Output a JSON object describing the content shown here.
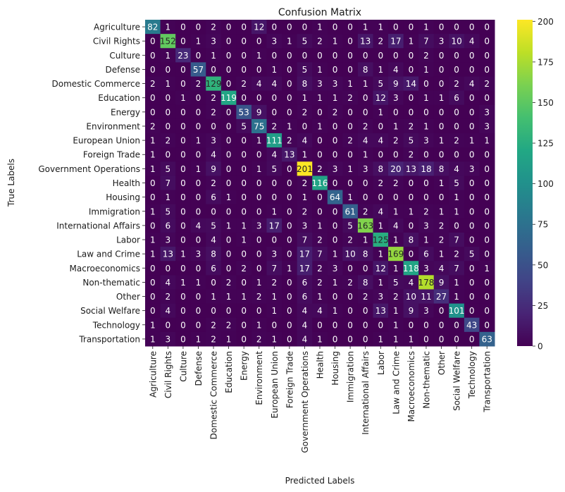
{
  "chart_data": {
    "type": "heatmap",
    "title": "Confusion Matrix",
    "xlabel": "Predicted Labels",
    "ylabel": "True Labels",
    "colormap": "viridis",
    "colorbar": {
      "min": 0,
      "max": 201,
      "ticks": [
        0,
        25,
        50,
        75,
        100,
        125,
        150,
        175,
        200
      ]
    },
    "labels": [
      "Agriculture",
      "Civil Rights",
      "Culture",
      "Defense",
      "Domestic Commerce",
      "Education",
      "Energy",
      "Environment",
      "European Union",
      "Foreign Trade",
      "Government Operations",
      "Health",
      "Housing",
      "Immigration",
      "International Affairs",
      "Labor",
      "Law and Crime",
      "Macroeconomics",
      "Non-thematic",
      "Other",
      "Social Welfare",
      "Technology",
      "Transportation"
    ],
    "matrix": [
      [
        82,
        1,
        0,
        0,
        2,
        0,
        0,
        12,
        0,
        0,
        0,
        1,
        0,
        0,
        1,
        1,
        0,
        0,
        1,
        0,
        0,
        0,
        0
      ],
      [
        0,
        152,
        0,
        1,
        3,
        0,
        0,
        0,
        3,
        1,
        5,
        2,
        1,
        0,
        13,
        2,
        17,
        1,
        7,
        3,
        10,
        4,
        0
      ],
      [
        0,
        1,
        23,
        0,
        1,
        0,
        0,
        1,
        0,
        0,
        0,
        0,
        0,
        0,
        0,
        0,
        0,
        0,
        2,
        0,
        0,
        0,
        0
      ],
      [
        0,
        0,
        0,
        57,
        0,
        0,
        0,
        0,
        1,
        0,
        5,
        1,
        0,
        0,
        8,
        1,
        4,
        0,
        1,
        0,
        0,
        0,
        0
      ],
      [
        2,
        1,
        0,
        2,
        129,
        0,
        2,
        4,
        4,
        0,
        8,
        3,
        3,
        1,
        1,
        5,
        9,
        14,
        0,
        0,
        2,
        4,
        2
      ],
      [
        0,
        0,
        1,
        0,
        2,
        119,
        0,
        0,
        0,
        0,
        1,
        1,
        1,
        2,
        0,
        12,
        3,
        0,
        1,
        1,
        6,
        0,
        0
      ],
      [
        0,
        0,
        0,
        0,
        2,
        0,
        53,
        9,
        0,
        0,
        2,
        0,
        2,
        0,
        0,
        1,
        0,
        0,
        0,
        0,
        0,
        0,
        3
      ],
      [
        2,
        0,
        0,
        0,
        0,
        0,
        5,
        75,
        2,
        1,
        0,
        1,
        0,
        0,
        2,
        0,
        1,
        2,
        1,
        0,
        0,
        0,
        3
      ],
      [
        1,
        2,
        0,
        1,
        3,
        0,
        0,
        1,
        111,
        2,
        4,
        0,
        0,
        2,
        4,
        4,
        2,
        5,
        3,
        1,
        2,
        1,
        1
      ],
      [
        1,
        0,
        0,
        0,
        4,
        0,
        0,
        0,
        4,
        13,
        1,
        0,
        0,
        0,
        1,
        0,
        0,
        2,
        0,
        0,
        0,
        0,
        0
      ],
      [
        1,
        5,
        0,
        1,
        9,
        0,
        0,
        1,
        5,
        0,
        201,
        2,
        3,
        1,
        3,
        8,
        20,
        13,
        18,
        8,
        4,
        3,
        0
      ],
      [
        0,
        7,
        0,
        0,
        2,
        0,
        0,
        0,
        0,
        0,
        2,
        116,
        0,
        0,
        0,
        2,
        2,
        0,
        0,
        1,
        5,
        0,
        0
      ],
      [
        0,
        1,
        0,
        0,
        6,
        1,
        0,
        0,
        0,
        0,
        1,
        0,
        64,
        1,
        0,
        0,
        0,
        0,
        0,
        0,
        1,
        0,
        0
      ],
      [
        1,
        5,
        0,
        0,
        0,
        0,
        0,
        0,
        1,
        0,
        2,
        0,
        0,
        61,
        2,
        4,
        1,
        1,
        2,
        1,
        1,
        0,
        0
      ],
      [
        0,
        6,
        0,
        4,
        5,
        1,
        1,
        3,
        17,
        0,
        3,
        1,
        0,
        5,
        163,
        1,
        4,
        0,
        3,
        2,
        0,
        0,
        0
      ],
      [
        1,
        3,
        0,
        0,
        4,
        0,
        1,
        0,
        0,
        0,
        7,
        2,
        0,
        2,
        1,
        125,
        1,
        8,
        1,
        2,
        7,
        0,
        0
      ],
      [
        1,
        13,
        1,
        3,
        8,
        0,
        0,
        0,
        3,
        0,
        17,
        7,
        1,
        10,
        8,
        1,
        169,
        0,
        6,
        1,
        2,
        5,
        0
      ],
      [
        0,
        0,
        0,
        0,
        6,
        0,
        2,
        0,
        7,
        1,
        17,
        2,
        3,
        0,
        0,
        12,
        1,
        118,
        3,
        4,
        7,
        0,
        1
      ],
      [
        0,
        4,
        1,
        1,
        0,
        2,
        0,
        1,
        2,
        0,
        6,
        2,
        1,
        2,
        8,
        1,
        5,
        4,
        178,
        9,
        1,
        0,
        0
      ],
      [
        0,
        2,
        0,
        0,
        1,
        1,
        1,
        2,
        1,
        0,
        6,
        1,
        0,
        0,
        2,
        3,
        2,
        10,
        11,
        27,
        1,
        0,
        0
      ],
      [
        0,
        4,
        0,
        0,
        0,
        0,
        0,
        0,
        1,
        0,
        4,
        4,
        1,
        0,
        0,
        13,
        1,
        9,
        3,
        0,
        101,
        0,
        0
      ],
      [
        1,
        0,
        0,
        0,
        2,
        2,
        0,
        1,
        0,
        0,
        4,
        0,
        0,
        0,
        0,
        0,
        1,
        0,
        0,
        0,
        0,
        43,
        0
      ],
      [
        1,
        3,
        0,
        1,
        2,
        1,
        0,
        2,
        1,
        0,
        4,
        1,
        0,
        0,
        0,
        1,
        1,
        1,
        0,
        0,
        0,
        0,
        63
      ]
    ]
  }
}
